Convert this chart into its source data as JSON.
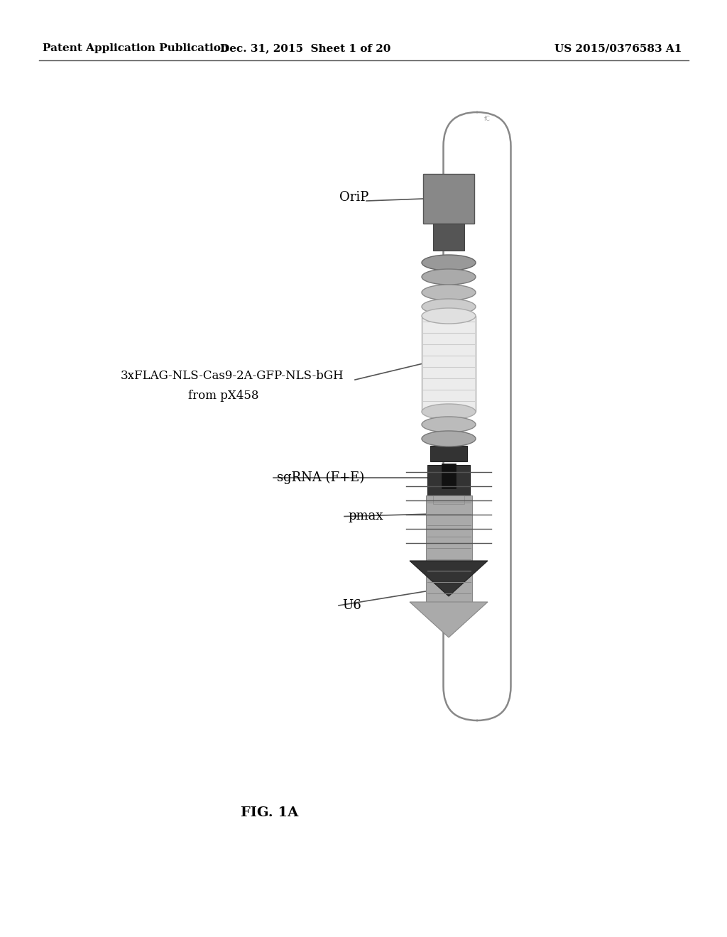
{
  "header_left": "Patent Application Publication",
  "header_mid": "Dec. 31, 2015  Sheet 1 of 20",
  "header_right": "US 2015/0376583 A1",
  "fig_label": "FIG. 1A",
  "label_orip": "OriP",
  "label_cas9": "3xFLAG-NLS-Cas9-2A-GFP-NLS-bGH",
  "label_frompx": "from pX458",
  "label_pmax": "pmax",
  "label_sgrna": "sgRNA (F+E)",
  "label_u6": "U6",
  "bg_color": "#ffffff",
  "text_color": "#000000",
  "capsule_edge_color": "#888888",
  "capsule_face_color": "#ffffff",
  "orip_block_color": "#888888",
  "dark_connector_color": "#555555",
  "ell1_color": "#888888",
  "ell2_color": "#999999",
  "ell3_color": "#aaaaaa",
  "ell4_color": "#bbbbbb",
  "cas9_body_color": "#e0e0e0",
  "cas9_stripe_color": "#c8c8c8",
  "pmax_color": "#333333",
  "sgrna_connector_color": "#222222",
  "u6_color": "#aaaaaa",
  "pointer_color": "#555555"
}
